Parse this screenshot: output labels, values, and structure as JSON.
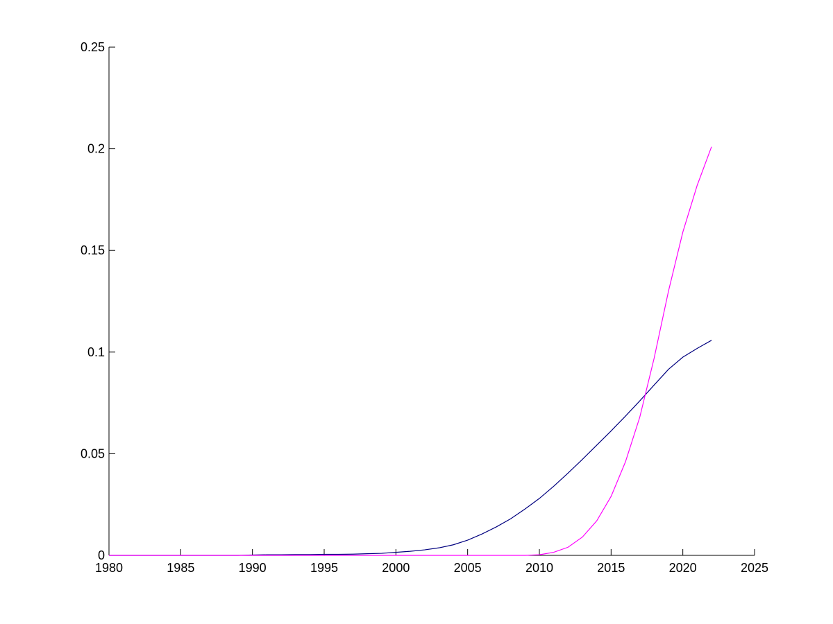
{
  "chart_data": {
    "type": "line",
    "x": [
      1980,
      1981,
      1982,
      1983,
      1984,
      1985,
      1986,
      1987,
      1988,
      1989,
      1990,
      1991,
      1992,
      1993,
      1994,
      1995,
      1996,
      1997,
      1998,
      1999,
      2000,
      2001,
      2002,
      2003,
      2004,
      2005,
      2006,
      2007,
      2008,
      2009,
      2010,
      2011,
      2012,
      2013,
      2014,
      2015,
      2016,
      2017,
      2018,
      2019,
      2020,
      2021,
      2022
    ],
    "series": [
      {
        "color": "#00007f",
        "values": [
          0,
          0,
          0,
          0,
          0,
          0,
          0,
          0,
          0,
          0,
          0.0002,
          0.0003,
          0.0003,
          0.0004,
          0.0004,
          0.0005,
          0.0005,
          0.0006,
          0.0008,
          0.001,
          0.0015,
          0.002,
          0.0027,
          0.0037,
          0.0052,
          0.0075,
          0.0105,
          0.014,
          0.018,
          0.0228,
          0.028,
          0.034,
          0.0405,
          0.0472,
          0.0542,
          0.0612,
          0.0685,
          0.076,
          0.0838,
          0.0915,
          0.0975,
          0.1018,
          0.1058
        ]
      },
      {
        "color": "#ff00ff",
        "values": [
          0,
          0,
          0,
          0,
          0,
          0,
          0,
          0,
          0,
          0,
          0,
          0,
          0,
          0,
          0,
          0,
          0,
          0,
          0,
          0,
          0,
          0,
          0,
          0,
          0,
          0,
          0,
          0,
          0,
          0,
          0.0003,
          0.0015,
          0.004,
          0.009,
          0.017,
          0.029,
          0.046,
          0.068,
          0.097,
          0.13,
          0.159,
          0.182,
          0.201
        ]
      }
    ],
    "xlim": [
      1980,
      2025
    ],
    "xticks": [
      1980,
      1985,
      1990,
      1995,
      2000,
      2005,
      2010,
      2015,
      2020,
      2025
    ],
    "ylim": [
      0,
      0.25
    ],
    "yticks": [
      0,
      0.05,
      0.1,
      0.15,
      0.2,
      0.25
    ]
  }
}
